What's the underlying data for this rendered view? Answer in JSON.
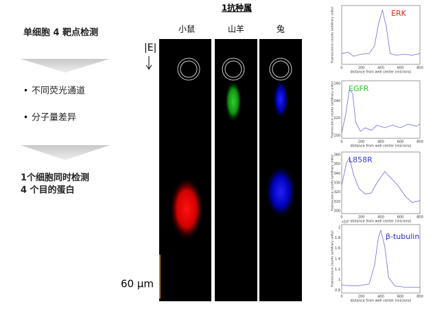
{
  "left": {
    "title": "单细胞 4 靶点检测",
    "bullets": [
      "不同荧光通道",
      "分子量差异"
    ],
    "summary": [
      "1个细胞同时检测",
      "4 个目的蛋白"
    ]
  },
  "gel": {
    "header": "1抗种属",
    "lanes": [
      "小鼠",
      "山羊",
      "兔"
    ],
    "direction_label": "E",
    "scale_label": "60 μm"
  },
  "plots": [
    {
      "label": "ERK",
      "color": "#e8211d",
      "y_axis": "fluorescence counts (arbitrary units)",
      "x_axis": "distance from well center (microns)",
      "xticks": [
        "0",
        "200",
        "400",
        "600",
        "800"
      ],
      "yticks": []
    },
    {
      "label": "EGFR",
      "color": "#2bc42b",
      "y_axis": "fluorescence counts (arbitrary units)",
      "x_axis": "distance from well center (microns)",
      "xticks": [
        "0",
        "200",
        "400",
        "600",
        "800"
      ],
      "yticks": [
        "260",
        "240",
        "220",
        "200"
      ]
    },
    {
      "label": "L858R",
      "color": "#3b3bd6",
      "y_axis": "fluorescence counts (arbitrary units)",
      "x_axis": "distance from well center (microns)",
      "xticks": [
        "0",
        "200",
        "400",
        "600",
        "800"
      ],
      "yticks": [
        "360",
        "350",
        "340",
        "330",
        "320",
        "310",
        "300"
      ]
    },
    {
      "label": "β-tubulin",
      "color": "#2a2ad0",
      "y_axis": "fluorescence counts (arbitrary units)",
      "x_axis": "distance from well center (microns)",
      "exponent": "x10⁴",
      "xticks": [
        "0",
        "200",
        "400",
        "600",
        "800"
      ],
      "yticks": [
        "2",
        "1.8",
        "1.6",
        "1.4",
        "1.2",
        "1",
        "0.8"
      ]
    }
  ]
}
